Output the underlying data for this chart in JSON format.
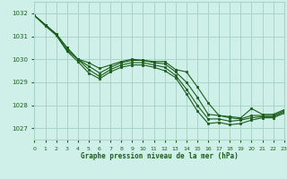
{
  "bg_color": "#cff0e8",
  "grid_color": "#aad4c8",
  "line_color": "#1a5c1a",
  "marker_color": "#1a5c1a",
  "xlabel": "Graphe pression niveau de la mer (hPa)",
  "xlabel_color": "#1a5c1a",
  "xlim": [
    0,
    23
  ],
  "ylim": [
    1026.5,
    1032.5
  ],
  "yticks": [
    1027,
    1028,
    1029,
    1030,
    1031,
    1032
  ],
  "xticks": [
    0,
    1,
    2,
    3,
    4,
    5,
    6,
    7,
    8,
    9,
    10,
    11,
    12,
    13,
    14,
    15,
    16,
    17,
    18,
    19,
    20,
    21,
    22,
    23
  ],
  "series": [
    [
      1031.9,
      1031.5,
      1031.1,
      1030.5,
      1030.0,
      1029.85,
      1029.6,
      1029.75,
      1029.9,
      1030.0,
      1029.95,
      1029.9,
      1029.9,
      1029.55,
      1029.45,
      1028.8,
      1028.1,
      1027.55,
      1027.5,
      1027.45,
      1027.85,
      1027.6,
      1027.6,
      1027.8
    ],
    [
      1031.9,
      1031.5,
      1031.1,
      1030.5,
      1030.0,
      1029.7,
      1029.4,
      1029.65,
      1029.85,
      1029.95,
      1029.95,
      1029.85,
      1029.8,
      1029.45,
      1029.0,
      1028.35,
      1027.6,
      1027.55,
      1027.45,
      1027.4,
      1027.55,
      1027.55,
      1027.55,
      1027.75
    ],
    [
      1031.9,
      1031.5,
      1031.05,
      1030.4,
      1030.0,
      1029.55,
      1029.25,
      1029.55,
      1029.75,
      1029.85,
      1029.85,
      1029.75,
      1029.65,
      1029.3,
      1028.7,
      1028.0,
      1027.4,
      1027.4,
      1027.3,
      1027.35,
      1027.45,
      1027.5,
      1027.5,
      1027.7
    ],
    [
      1031.9,
      1031.45,
      1031.05,
      1030.35,
      1029.9,
      1029.4,
      1029.15,
      1029.45,
      1029.65,
      1029.75,
      1029.75,
      1029.65,
      1029.5,
      1029.2,
      1028.5,
      1027.75,
      1027.2,
      1027.25,
      1027.15,
      1027.2,
      1027.35,
      1027.45,
      1027.45,
      1027.65
    ]
  ]
}
